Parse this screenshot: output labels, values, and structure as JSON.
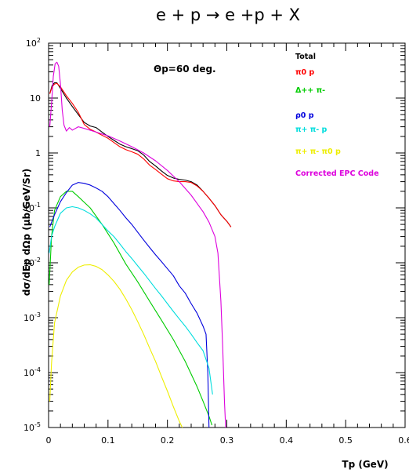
{
  "chart_data": {
    "type": "line",
    "title": "e + p → e +p + X",
    "annotation": "Θp=60 deg.",
    "xlabel": "Tp (GeV)",
    "ylabel": "dσ/dEp dΩp (μb/GeV/Sr)",
    "xscale": "linear",
    "yscale": "log",
    "xlim": [
      0,
      0.6
    ],
    "ylim": [
      1e-05,
      100
    ],
    "x_tick_labels": [
      "0",
      "0.1",
      "0.2",
      "0.3",
      "0.4",
      "0.5",
      "0.6"
    ],
    "y_tick_labels": [
      {
        "base": "10",
        "exp": "-5"
      },
      {
        "base": "10",
        "exp": "-4"
      },
      {
        "base": "10",
        "exp": "-3"
      },
      {
        "base": "10",
        "exp": "-2"
      },
      {
        "base": "10",
        "exp": "-1"
      },
      {
        "base": "1",
        "exp": ""
      },
      {
        "base": "10",
        "exp": ""
      },
      {
        "base": "10",
        "exp": "2"
      }
    ],
    "grid": false,
    "legend_position": "top-right",
    "series": [
      {
        "name": "Total",
        "color": "#000000",
        "points": [
          [
            0.002,
            12
          ],
          [
            0.006,
            17
          ],
          [
            0.01,
            19
          ],
          [
            0.014,
            19
          ],
          [
            0.02,
            15
          ],
          [
            0.03,
            10
          ],
          [
            0.04,
            7
          ],
          [
            0.05,
            5
          ],
          [
            0.06,
            3.6
          ],
          [
            0.07,
            3.1
          ],
          [
            0.08,
            2.9
          ],
          [
            0.09,
            2.4
          ],
          [
            0.1,
            2.0
          ],
          [
            0.11,
            1.7
          ],
          [
            0.12,
            1.45
          ],
          [
            0.13,
            1.3
          ],
          [
            0.14,
            1.2
          ],
          [
            0.15,
            1.1
          ],
          [
            0.16,
            0.92
          ],
          [
            0.17,
            0.7
          ],
          [
            0.18,
            0.58
          ],
          [
            0.19,
            0.47
          ],
          [
            0.2,
            0.39
          ],
          [
            0.21,
            0.35
          ],
          [
            0.22,
            0.33
          ],
          [
            0.23,
            0.32
          ],
          [
            0.24,
            0.3
          ],
          [
            0.25,
            0.26
          ],
          [
            0.26,
            0.2
          ],
          [
            0.27,
            0.15
          ],
          [
            0.28,
            0.11
          ],
          [
            0.29,
            0.075
          ],
          [
            0.3,
            0.057
          ],
          [
            0.307,
            0.045
          ]
        ]
      },
      {
        "name": "π0 p",
        "color": "#ff0000",
        "points": [
          [
            0.002,
            12
          ],
          [
            0.006,
            16
          ],
          [
            0.01,
            18
          ],
          [
            0.014,
            18.5
          ],
          [
            0.02,
            16
          ],
          [
            0.03,
            11
          ],
          [
            0.04,
            8
          ],
          [
            0.05,
            5.5
          ],
          [
            0.06,
            3.3
          ],
          [
            0.07,
            2.7
          ],
          [
            0.08,
            2.4
          ],
          [
            0.09,
            2.1
          ],
          [
            0.1,
            1.85
          ],
          [
            0.11,
            1.55
          ],
          [
            0.12,
            1.3
          ],
          [
            0.13,
            1.15
          ],
          [
            0.14,
            1.05
          ],
          [
            0.15,
            0.95
          ],
          [
            0.16,
            0.78
          ],
          [
            0.17,
            0.6
          ],
          [
            0.18,
            0.5
          ],
          [
            0.19,
            0.41
          ],
          [
            0.2,
            0.34
          ],
          [
            0.21,
            0.31
          ],
          [
            0.22,
            0.3
          ],
          [
            0.23,
            0.3
          ],
          [
            0.24,
            0.29
          ],
          [
            0.25,
            0.25
          ],
          [
            0.26,
            0.2
          ],
          [
            0.27,
            0.15
          ],
          [
            0.28,
            0.11
          ],
          [
            0.29,
            0.075
          ],
          [
            0.3,
            0.057
          ],
          [
            0.307,
            0.045
          ]
        ]
      },
      {
        "name": "Δ++ π-",
        "color": "#00cc00",
        "points": [
          [
            0.001,
            0.004
          ],
          [
            0.005,
            0.03
          ],
          [
            0.01,
            0.09
          ],
          [
            0.02,
            0.16
          ],
          [
            0.03,
            0.2
          ],
          [
            0.04,
            0.2
          ],
          [
            0.05,
            0.16
          ],
          [
            0.07,
            0.1
          ],
          [
            0.09,
            0.05
          ],
          [
            0.11,
            0.023
          ],
          [
            0.13,
            0.0095
          ],
          [
            0.15,
            0.0045
          ],
          [
            0.17,
            0.002
          ],
          [
            0.19,
            0.0009
          ],
          [
            0.21,
            0.0004
          ],
          [
            0.23,
            0.00016
          ],
          [
            0.25,
            5.5e-05
          ],
          [
            0.26,
            3e-05
          ],
          [
            0.27,
            1.6e-05
          ],
          [
            0.275,
            1.1e-05
          ]
        ]
      },
      {
        "name": "ρ0 p",
        "color": "#0000dd",
        "points": [
          [
            0.002,
            0.045
          ],
          [
            0.01,
            0.075
          ],
          [
            0.02,
            0.13
          ],
          [
            0.03,
            0.19
          ],
          [
            0.04,
            0.26
          ],
          [
            0.05,
            0.29
          ],
          [
            0.06,
            0.28
          ],
          [
            0.07,
            0.26
          ],
          [
            0.08,
            0.23
          ],
          [
            0.09,
            0.2
          ],
          [
            0.1,
            0.16
          ],
          [
            0.11,
            0.12
          ],
          [
            0.12,
            0.09
          ],
          [
            0.13,
            0.066
          ],
          [
            0.14,
            0.05
          ],
          [
            0.15,
            0.036
          ],
          [
            0.16,
            0.026
          ],
          [
            0.17,
            0.019
          ],
          [
            0.18,
            0.014
          ],
          [
            0.19,
            0.0105
          ],
          [
            0.2,
            0.0078
          ],
          [
            0.21,
            0.0058
          ],
          [
            0.22,
            0.0038
          ],
          [
            0.23,
            0.0028
          ],
          [
            0.24,
            0.0018
          ],
          [
            0.25,
            0.0012
          ],
          [
            0.26,
            0.0007
          ],
          [
            0.265,
            0.0005
          ],
          [
            0.268,
            0.0001
          ],
          [
            0.27,
            1e-05
          ]
        ]
      },
      {
        "name": "π+ π- p",
        "color": "#00dddd",
        "points": [
          [
            0.001,
            0.015
          ],
          [
            0.005,
            0.03
          ],
          [
            0.01,
            0.045
          ],
          [
            0.02,
            0.08
          ],
          [
            0.03,
            0.1
          ],
          [
            0.04,
            0.105
          ],
          [
            0.05,
            0.1
          ],
          [
            0.06,
            0.09
          ],
          [
            0.07,
            0.078
          ],
          [
            0.08,
            0.065
          ],
          [
            0.09,
            0.05
          ],
          [
            0.1,
            0.038
          ],
          [
            0.11,
            0.03
          ],
          [
            0.12,
            0.022
          ],
          [
            0.13,
            0.016
          ],
          [
            0.14,
            0.012
          ],
          [
            0.15,
            0.0088
          ],
          [
            0.16,
            0.0065
          ],
          [
            0.17,
            0.0047
          ],
          [
            0.18,
            0.0034
          ],
          [
            0.19,
            0.0025
          ],
          [
            0.2,
            0.0018
          ],
          [
            0.21,
            0.0013
          ],
          [
            0.22,
            0.00095
          ],
          [
            0.23,
            0.0007
          ],
          [
            0.24,
            0.0005
          ],
          [
            0.25,
            0.00035
          ],
          [
            0.26,
            0.00025
          ],
          [
            0.27,
            0.00012
          ],
          [
            0.276,
            4e-05
          ]
        ]
      },
      {
        "name": "π+ π- π0 p",
        "color": "#eeee00",
        "points": [
          [
            0.002,
            3e-05
          ],
          [
            0.005,
            0.00015
          ],
          [
            0.01,
            0.0008
          ],
          [
            0.02,
            0.0025
          ],
          [
            0.03,
            0.0048
          ],
          [
            0.04,
            0.0068
          ],
          [
            0.05,
            0.0083
          ],
          [
            0.06,
            0.0091
          ],
          [
            0.07,
            0.0092
          ],
          [
            0.08,
            0.0086
          ],
          [
            0.09,
            0.0075
          ],
          [
            0.1,
            0.006
          ],
          [
            0.11,
            0.0046
          ],
          [
            0.12,
            0.0033
          ],
          [
            0.13,
            0.0022
          ],
          [
            0.14,
            0.0014
          ],
          [
            0.15,
            0.00085
          ],
          [
            0.16,
            0.0005
          ],
          [
            0.17,
            0.00028
          ],
          [
            0.18,
            0.00016
          ],
          [
            0.19,
            8.5e-05
          ],
          [
            0.2,
            4.6e-05
          ],
          [
            0.21,
            2.4e-05
          ],
          [
            0.22,
            1.3e-05
          ],
          [
            0.225,
            1e-05
          ]
        ]
      },
      {
        "name": "Corrected EPC Code",
        "color": "#dd00dd",
        "points": [
          [
            0.002,
            3
          ],
          [
            0.005,
            8
          ],
          [
            0.008,
            25
          ],
          [
            0.011,
            42
          ],
          [
            0.014,
            45
          ],
          [
            0.017,
            38
          ],
          [
            0.02,
            18
          ],
          [
            0.023,
            6
          ],
          [
            0.026,
            3.2
          ],
          [
            0.03,
            2.5
          ],
          [
            0.035,
            2.9
          ],
          [
            0.04,
            2.6
          ],
          [
            0.05,
            3.0
          ],
          [
            0.06,
            2.8
          ],
          [
            0.08,
            2.4
          ],
          [
            0.1,
            2.05
          ],
          [
            0.12,
            1.65
          ],
          [
            0.14,
            1.3
          ],
          [
            0.16,
            1.0
          ],
          [
            0.18,
            0.72
          ],
          [
            0.2,
            0.48
          ],
          [
            0.22,
            0.3
          ],
          [
            0.24,
            0.17
          ],
          [
            0.26,
            0.085
          ],
          [
            0.27,
            0.055
          ],
          [
            0.28,
            0.03
          ],
          [
            0.285,
            0.015
          ],
          [
            0.29,
            0.002
          ],
          [
            0.293,
            0.0003
          ],
          [
            0.296,
            3e-05
          ],
          [
            0.298,
            1e-05
          ]
        ]
      }
    ]
  }
}
